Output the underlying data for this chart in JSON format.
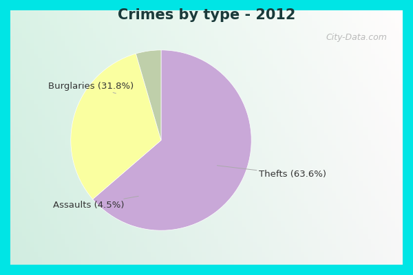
{
  "title": "Crimes by type - 2012",
  "slices": [
    {
      "label": "Thefts (63.6%)",
      "value": 63.6,
      "color": "#C9A8D8"
    },
    {
      "label": "Burglaries (31.8%)",
      "value": 31.8,
      "color": "#FAFFA0"
    },
    {
      "label": "Assaults (4.5%)",
      "value": 4.5,
      "color": "#BFCFAA"
    }
  ],
  "title_fontsize": 15,
  "title_color": "#1a3a3a",
  "label_fontsize": 9.5,
  "label_color": "#333333",
  "border_color": "#00E5E5",
  "inner_bg": "#d8f0e8",
  "watermark": "City-Data.com",
  "startangle": 90
}
